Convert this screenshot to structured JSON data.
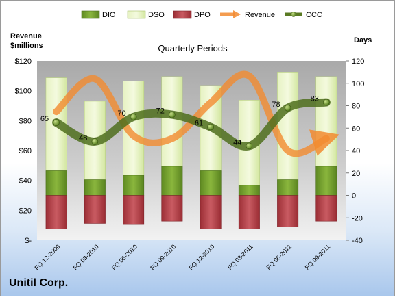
{
  "chart_data": {
    "type": "bar",
    "title": "Quarterly Periods",
    "left_axis_label_line1": "Revenue",
    "left_axis_label_line2": "$millions",
    "right_axis_label": "Days",
    "left_ylim": [
      0,
      120
    ],
    "left_ticks": [
      "$-",
      "$20",
      "$40",
      "$60",
      "$80",
      "$100",
      "$120"
    ],
    "right_ylim": [
      -40,
      120
    ],
    "right_ticks": [
      "-40",
      "-20",
      "0",
      "20",
      "40",
      "60",
      "80",
      "100",
      "120"
    ],
    "categories": [
      "FQ 12-2009",
      "FQ 03-2010",
      "FQ 06-2010",
      "FQ 09-2010",
      "FQ 12-2010",
      "FQ 03-2011",
      "FQ 06-2011",
      "FQ 09-2011"
    ],
    "series": [
      {
        "name": "DIO",
        "axis": "right",
        "values": [
          22,
          14,
          18,
          26,
          22,
          9,
          14,
          26
        ],
        "color": "#6f9a2a"
      },
      {
        "name": "DSO",
        "axis": "right",
        "values": [
          83,
          70,
          84,
          80,
          76,
          76,
          96,
          80
        ],
        "color": "#dcedb0"
      },
      {
        "name": "DPO",
        "axis": "right",
        "values": [
          -30,
          -25,
          -26,
          -23,
          -30,
          -30,
          -28,
          -23
        ],
        "color": "#b8434a"
      },
      {
        "name": "Revenue",
        "axis": "left",
        "values": [
          86,
          108,
          70,
          68,
          92,
          110,
          60,
          68
        ],
        "color": "#f28b30"
      },
      {
        "name": "CCC",
        "axis": "right",
        "values": [
          65,
          48,
          70,
          72,
          61,
          44,
          78,
          83
        ],
        "color": "#5a7a23"
      }
    ],
    "ccc_labels": [
      "65",
      "48",
      "70",
      "72",
      "61",
      "44",
      "78",
      "83"
    ],
    "grid": false,
    "legend_position": "top"
  },
  "footer": {
    "company": "Unitil Corp."
  }
}
